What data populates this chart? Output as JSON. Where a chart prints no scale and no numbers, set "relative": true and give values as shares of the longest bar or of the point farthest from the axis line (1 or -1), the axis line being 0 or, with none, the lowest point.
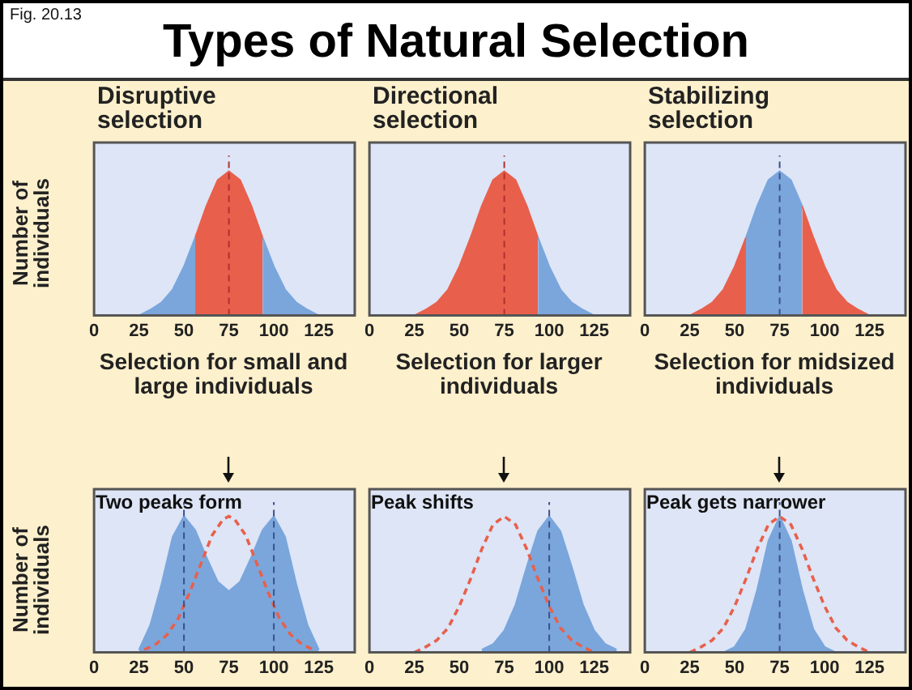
{
  "chart_data": [
    {
      "type": "area",
      "title": "Types of Natural Selection",
      "subtitle": "Disruptive selection",
      "xlabel": "Selection for small and large individuals",
      "ylabel": "Number of individuals",
      "annotations": [
        "Fig. 20.13"
      ],
      "relative": true,
      "xlim": [
        0,
        145
      ],
      "xticks": [
        0,
        25,
        50,
        75,
        100,
        125
      ],
      "series": [
        {
          "color": "#7aa6dc",
          "x": [
            25,
            31.25,
            37.5,
            43.75,
            50,
            56.25
          ],
          "values": [
            0,
            0.04,
            0.09,
            0.18,
            0.34,
            0.54
          ]
        },
        {
          "color": "#e8604c",
          "x": [
            56.25,
            62.5,
            68.75,
            75,
            81.25,
            87.5,
            93.75
          ],
          "values": [
            0.54,
            0.76,
            0.94,
            1,
            0.94,
            0.76,
            0.54
          ]
        },
        {
          "color": "#7aa6dc",
          "x": [
            93.75,
            100,
            106.25,
            112.5,
            118.75,
            125
          ],
          "values": [
            0.54,
            0.34,
            0.18,
            0.09,
            0.04,
            0
          ]
        }
      ],
      "ref_lines": [
        {
          "axis": "x",
          "value": 75,
          "color": "#b03030",
          "line_style": "dashed"
        }
      ]
    },
    {
      "type": "area",
      "subtitle": "Directional selection",
      "xlabel": "Selection for larger individuals",
      "relative": true,
      "xlim": [
        0,
        145
      ],
      "xticks": [
        0,
        25,
        50,
        75,
        100,
        125
      ],
      "series": [
        {
          "color": "#e8604c",
          "x": [
            25,
            31.25,
            37.5,
            43.75,
            50,
            56.25,
            62.5,
            68.75,
            75,
            81.25,
            87.5,
            93.75
          ],
          "values": [
            0,
            0.04,
            0.09,
            0.18,
            0.34,
            0.54,
            0.76,
            0.94,
            1,
            0.94,
            0.76,
            0.54
          ]
        },
        {
          "color": "#7aa6dc",
          "x": [
            93.75,
            100,
            106.25,
            112.5,
            118.75,
            125
          ],
          "values": [
            0.54,
            0.34,
            0.18,
            0.09,
            0.04,
            0
          ]
        }
      ],
      "ref_lines": [
        {
          "axis": "x",
          "value": 75,
          "color": "#b03030",
          "line_style": "dashed"
        }
      ]
    },
    {
      "type": "area",
      "subtitle": "Stabilizing selection",
      "xlabel": "Selection for midsized individuals",
      "relative": true,
      "xlim": [
        0,
        145
      ],
      "xticks": [
        0,
        25,
        50,
        75,
        100,
        125
      ],
      "series": [
        {
          "color": "#e8604c",
          "x": [
            25,
            31.25,
            37.5,
            43.75,
            50,
            56.25
          ],
          "values": [
            0,
            0.04,
            0.09,
            0.18,
            0.34,
            0.54
          ]
        },
        {
          "color": "#7aa6dc",
          "x": [
            56.25,
            62.5,
            68.75,
            75,
            81.25,
            87.5
          ],
          "values": [
            0.54,
            0.76,
            0.94,
            1,
            0.94,
            0.76
          ]
        },
        {
          "color": "#e8604c",
          "x": [
            87.5,
            93.75,
            100,
            106.25,
            112.5,
            118.75,
            125
          ],
          "values": [
            0.76,
            0.54,
            0.34,
            0.18,
            0.09,
            0.04,
            0
          ]
        }
      ],
      "ref_lines": [
        {
          "axis": "x",
          "value": 75,
          "color": "#3d4f8a",
          "line_style": "dashed"
        }
      ]
    },
    {
      "type": "area",
      "ylabel": "Number of individuals",
      "annotations": [
        "Two peaks form"
      ],
      "relative": true,
      "xlim": [
        0,
        145
      ],
      "xticks": [
        0,
        25,
        50,
        75,
        100,
        125
      ],
      "series": [
        {
          "color": "#7aa6dc",
          "x": [
            25,
            31.25,
            37.5,
            43.75,
            50,
            56.25,
            62.5,
            68.75,
            75,
            81.25,
            87.5,
            93.75,
            100,
            106.25,
            112.5,
            118.75,
            125
          ],
          "values": [
            0.02,
            0.2,
            0.5,
            0.85,
            1,
            0.9,
            0.7,
            0.52,
            0.45,
            0.52,
            0.7,
            0.9,
            1,
            0.85,
            0.5,
            0.2,
            0.02
          ]
        },
        {
          "type": "line",
          "color": "#e8604c",
          "line_style": "dashed",
          "x": [
            28,
            34.375,
            40.625,
            46.875,
            53.125,
            59.375,
            65.625,
            71.875,
            75,
            78.125,
            84.375,
            90.625,
            96.875,
            103.125,
            109.375,
            115.625,
            122
          ],
          "values": [
            0.02,
            0.06,
            0.13,
            0.25,
            0.44,
            0.65,
            0.86,
            0.98,
            1,
            0.98,
            0.86,
            0.65,
            0.44,
            0.25,
            0.13,
            0.06,
            0.02
          ]
        }
      ],
      "ref_lines": [
        {
          "axis": "x",
          "value": 50,
          "color": "#3d4f8a",
          "line_style": "dashed"
        },
        {
          "axis": "x",
          "value": 100,
          "color": "#3d4f8a",
          "line_style": "dashed"
        }
      ]
    },
    {
      "type": "area",
      "annotations": [
        "Peak shifts"
      ],
      "relative": true,
      "xlim": [
        0,
        145
      ],
      "xticks": [
        0,
        25,
        50,
        75,
        100,
        125
      ],
      "series": [
        {
          "color": "#7aa6dc",
          "x": [
            62.5,
            68.75,
            75,
            81.25,
            87.5,
            93.75,
            100,
            106.25,
            112.5,
            118.75,
            125,
            131.25,
            137.5
          ],
          "values": [
            0.02,
            0.06,
            0.16,
            0.35,
            0.63,
            0.89,
            1,
            0.89,
            0.63,
            0.35,
            0.16,
            0.06,
            0.02
          ]
        },
        {
          "type": "line",
          "color": "#e8604c",
          "line_style": "dashed",
          "x": [
            25,
            31.25,
            37.5,
            43.75,
            50,
            56.25,
            62.5,
            68.75,
            75,
            81.25,
            87.5,
            93.75,
            100,
            106.25,
            112.5,
            118.75,
            125
          ],
          "values": [
            0,
            0.04,
            0.09,
            0.18,
            0.34,
            0.54,
            0.76,
            0.94,
            1,
            0.94,
            0.76,
            0.54,
            0.34,
            0.18,
            0.09,
            0.04,
            0
          ]
        }
      ],
      "ref_lines": [
        {
          "axis": "x",
          "value": 100,
          "color": "#3d4f8a",
          "line_style": "dashed"
        }
      ]
    },
    {
      "type": "area",
      "annotations": [
        "Peak gets narrower"
      ],
      "relative": true,
      "xlim": [
        0,
        145
      ],
      "xticks": [
        0,
        25,
        50,
        75,
        100,
        125
      ],
      "series": [
        {
          "color": "#7aa6dc",
          "x": [
            43.75,
            50,
            56.25,
            62.5,
            68.75,
            75,
            81.25,
            87.5,
            93.75,
            100,
            106.25
          ],
          "values": [
            0,
            0.04,
            0.17,
            0.46,
            0.82,
            1,
            0.82,
            0.46,
            0.17,
            0.04,
            0
          ]
        },
        {
          "type": "line",
          "color": "#e8604c",
          "line_style": "dashed",
          "x": [
            25,
            31.25,
            37.5,
            43.75,
            50,
            56.25,
            62.5,
            68.75,
            75,
            81.25,
            87.5,
            93.75,
            100,
            106.25,
            112.5,
            118.75,
            125
          ],
          "values": [
            0,
            0.04,
            0.09,
            0.18,
            0.34,
            0.54,
            0.76,
            0.94,
            1,
            0.94,
            0.76,
            0.54,
            0.34,
            0.18,
            0.09,
            0.04,
            0
          ]
        }
      ],
      "ref_lines": [
        {
          "axis": "x",
          "value": 75,
          "color": "#3d4f8a",
          "line_style": "dashed"
        }
      ]
    }
  ]
}
